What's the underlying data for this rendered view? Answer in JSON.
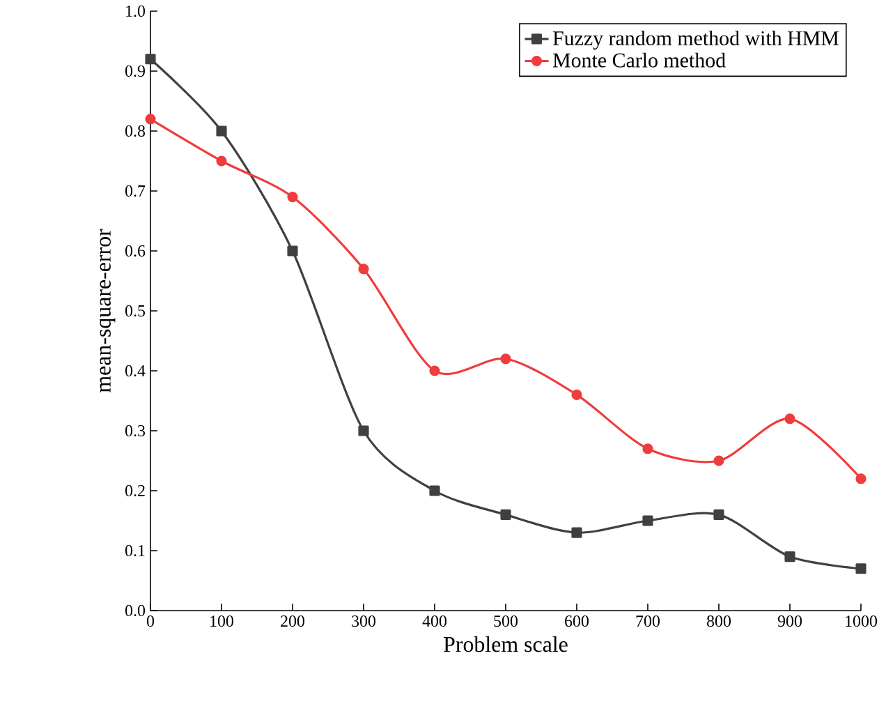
{
  "chart_data": {
    "type": "line",
    "xlabel": "Problem scale",
    "ylabel": "mean-square-error",
    "x": [
      0,
      100,
      200,
      300,
      400,
      500,
      600,
      700,
      800,
      900,
      1000
    ],
    "series": [
      {
        "name": "Fuzzy random method with HMM",
        "color": "#404040",
        "marker": "square",
        "values": [
          0.92,
          0.8,
          0.6,
          0.3,
          0.2,
          0.16,
          0.13,
          0.15,
          0.16,
          0.09,
          0.07
        ]
      },
      {
        "name": "Monte Carlo method",
        "color": "#f03c3c",
        "marker": "circle",
        "values": [
          0.82,
          0.75,
          0.69,
          0.57,
          0.4,
          0.42,
          0.36,
          0.27,
          0.25,
          0.32,
          0.22
        ]
      }
    ],
    "xlim": [
      0,
      1000
    ],
    "ylim": [
      0,
      1.0
    ],
    "xticks": [
      0,
      100,
      200,
      300,
      400,
      500,
      600,
      700,
      800,
      900,
      1000
    ],
    "yticks": [
      {
        "value": 0,
        "label": "0.0"
      },
      0.1,
      0.2,
      0.3,
      0.4,
      0.5,
      0.6,
      0.7,
      0.8,
      0.9,
      {
        "value": 1.0,
        "label": "1.0"
      }
    ],
    "grid": false,
    "legend": "top right",
    "line_style": "solid"
  }
}
